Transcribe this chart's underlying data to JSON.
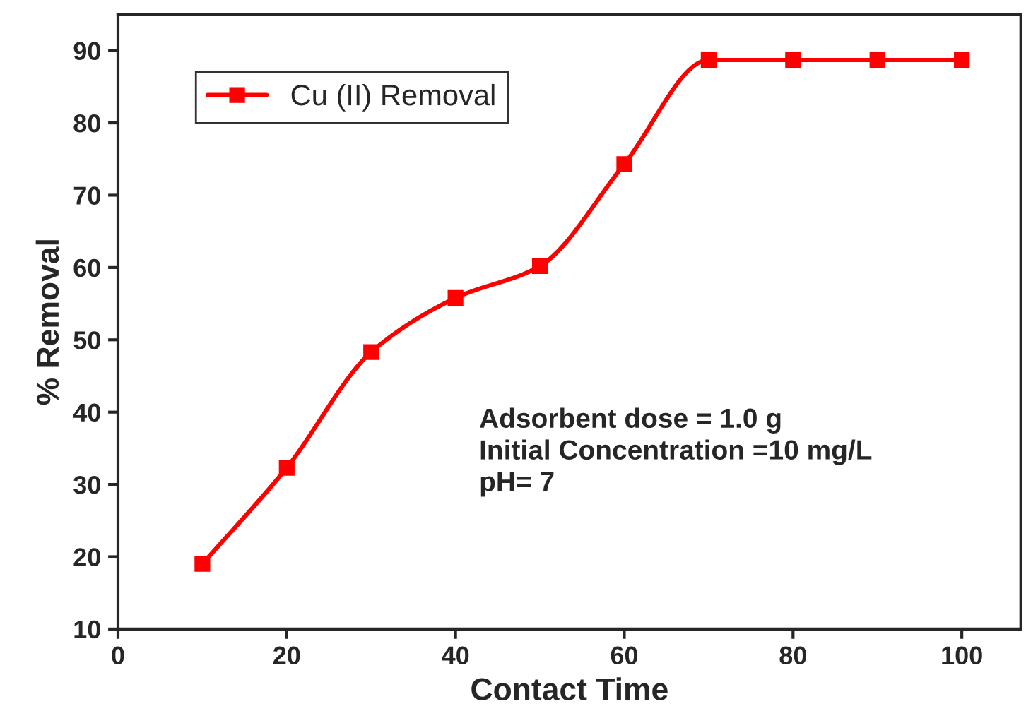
{
  "chart_data": {
    "type": "line",
    "xlabel": "Contact Time",
    "ylabel": "% Removal",
    "x": [
      10,
      20,
      30,
      40,
      50,
      60,
      70,
      80,
      90,
      100
    ],
    "series": [
      {
        "name": "Cu (II) Removal",
        "color": "#ff0000",
        "values": [
          19,
          32.3,
          48.3,
          55.8,
          60.2,
          74.3,
          88.7,
          88.7,
          88.7,
          88.7
        ]
      }
    ],
    "xlim": [
      0,
      107
    ],
    "ylim": [
      10,
      95
    ],
    "xticks": [
      0,
      20,
      40,
      60,
      80,
      100
    ],
    "yticks": [
      10,
      20,
      30,
      40,
      50,
      60,
      70,
      80,
      90
    ],
    "marker": "square",
    "line_style": "solid",
    "legend": "top left",
    "grid": false,
    "annotations": [
      "Adsorbent dose = 1.0 g",
      "Initial Concentration =10 mg/L",
      "pH= 7"
    ]
  }
}
